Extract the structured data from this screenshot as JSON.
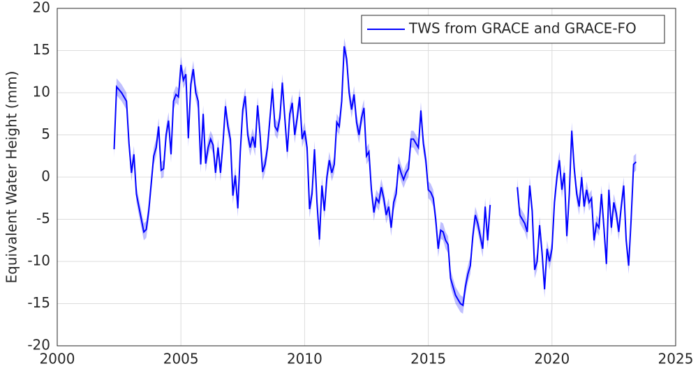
{
  "chart_data": {
    "type": "line",
    "y_label": "Equivalent Water Height (mm)",
    "xlim": [
      2000,
      2025
    ],
    "xticks": [
      2000,
      2005,
      2010,
      2015,
      2020,
      2025
    ],
    "ylim": [
      -20,
      20
    ],
    "yticks": [
      -20,
      -15,
      -10,
      -5,
      0,
      5,
      10,
      15,
      20
    ],
    "grid": true,
    "legend": "upper-right",
    "uncertainty": 1,
    "x": [
      2002.3,
      2002.4,
      2002.6,
      2002.8,
      2002.9,
      2003.0,
      2003.1,
      2003.2,
      2003.4,
      2003.5,
      2003.6,
      2003.7,
      2003.9,
      2004.0,
      2004.1,
      2004.2,
      2004.3,
      2004.4,
      2004.5,
      2004.6,
      2004.7,
      2004.8,
      2004.9,
      2005.0,
      2005.1,
      2005.2,
      2005.3,
      2005.4,
      2005.5,
      2005.6,
      2005.7,
      2005.8,
      2005.9,
      2006.0,
      2006.1,
      2006.2,
      2006.3,
      2006.4,
      2006.5,
      2006.6,
      2006.7,
      2006.8,
      2006.9,
      2007.0,
      2007.1,
      2007.2,
      2007.3,
      2007.4,
      2007.5,
      2007.6,
      2007.7,
      2007.8,
      2007.9,
      2008.0,
      2008.1,
      2008.2,
      2008.3,
      2008.4,
      2008.5,
      2008.6,
      2008.7,
      2008.8,
      2008.9,
      2009.0,
      2009.1,
      2009.2,
      2009.3,
      2009.4,
      2009.5,
      2009.6,
      2009.7,
      2009.8,
      2009.9,
      2010.0,
      2010.1,
      2010.2,
      2010.3,
      2010.4,
      2010.5,
      2010.6,
      2010.7,
      2010.8,
      2010.9,
      2011.0,
      2011.1,
      2011.2,
      2011.3,
      2011.4,
      2011.5,
      2011.6,
      2011.7,
      2011.8,
      2011.9,
      2012.0,
      2012.1,
      2012.2,
      2012.3,
      2012.4,
      2012.5,
      2012.6,
      2012.7,
      2012.8,
      2012.9,
      2013.0,
      2013.1,
      2013.2,
      2013.3,
      2013.4,
      2013.5,
      2013.6,
      2013.7,
      2013.8,
      2013.9,
      2014.0,
      2014.1,
      2014.2,
      2014.3,
      2014.4,
      2014.5,
      2014.6,
      2014.7,
      2014.8,
      2014.9,
      2015.0,
      2015.1,
      2015.2,
      2015.3,
      2015.4,
      2015.5,
      2015.6,
      2015.7,
      2015.8,
      2015.9,
      2016.0,
      2016.1,
      2016.2,
      2016.3,
      2016.4,
      2016.5,
      2016.6,
      2016.7,
      2016.8,
      2016.9,
      2017.0,
      2017.1,
      2017.2,
      2017.3,
      2017.4,
      2017.5,
      2018.0,
      2018.6,
      2018.7,
      2018.8,
      2018.9,
      2019.0,
      2019.1,
      2019.2,
      2019.3,
      2019.4,
      2019.5,
      2019.6,
      2019.7,
      2019.8,
      2019.9,
      2020.0,
      2020.1,
      2020.2,
      2020.3,
      2020.4,
      2020.5,
      2020.6,
      2020.7,
      2020.8,
      2020.9,
      2021.0,
      2021.1,
      2021.2,
      2021.3,
      2021.4,
      2021.5,
      2021.6,
      2021.7,
      2021.8,
      2021.9,
      2022.0,
      2022.1,
      2022.2,
      2022.3,
      2022.4,
      2022.5,
      2022.6,
      2022.7,
      2022.8,
      2022.9,
      2023.0,
      2023.1,
      2023.2,
      2023.3,
      2023.4
    ],
    "series": [
      {
        "name": "TWS from GRACE and GRACE-FO",
        "color": "#0000ff",
        "values": [
          3.3,
          10.7,
          10.0,
          9.0,
          4,
          0.5,
          2.7,
          -2,
          -5,
          -6.5,
          -6.2,
          -4,
          2.5,
          3.5,
          6,
          0.8,
          1,
          5,
          6.7,
          2.7,
          9,
          9.8,
          9.5,
          13.3,
          11.5,
          12.2,
          4.6,
          11,
          12.8,
          10,
          9,
          1.5,
          7.5,
          1.6,
          3.5,
          4.5,
          3.8,
          0.5,
          3.5,
          0.5,
          4,
          8.4,
          6,
          4.5,
          -2.2,
          0.2,
          -3.7,
          3,
          8,
          9.6,
          5,
          3.5,
          4.8,
          3.5,
          8.5,
          5,
          0.6,
          1.5,
          3.5,
          7,
          10.5,
          6,
          5.5,
          7,
          11.2,
          7,
          3,
          7.5,
          8.8,
          5,
          7,
          9.5,
          4.5,
          5.5,
          3.5,
          -3.8,
          -2,
          3.3,
          -3,
          -7.4,
          -1,
          -4,
          0,
          2,
          0.5,
          1.5,
          6.5,
          6,
          9,
          15.5,
          14,
          10,
          8,
          9.8,
          6.5,
          5,
          7,
          8.2,
          2.5,
          3,
          -1.5,
          -4.2,
          -2.5,
          -3,
          -1.2,
          -2.5,
          -4.5,
          -3.5,
          -6,
          -3,
          -2,
          1.5,
          0.5,
          -0.3,
          0.5,
          1,
          4.5,
          4.5,
          4,
          3.5,
          7.9,
          4,
          2,
          -1.5,
          -1.8,
          -2.5,
          -5,
          -8.5,
          -6.3,
          -6.5,
          -7.5,
          -8,
          -12,
          -13,
          -14,
          -14.5,
          -15,
          -15.2,
          -13,
          -11.5,
          -10.5,
          -7,
          -4.5,
          -5.5,
          -7,
          -8.5,
          -3.5,
          -7.5,
          -3.3,
          null,
          -1.2,
          -4.5,
          -5,
          -5.5,
          -6.5,
          -1,
          -4,
          -11,
          -10,
          -5.7,
          -9,
          -13.3,
          -8.5,
          -10,
          -8.5,
          -3,
          0,
          2,
          -1.5,
          0.5,
          -7,
          -2,
          5.5,
          1,
          -2,
          -3.5,
          0,
          -3.5,
          -1.5,
          -3,
          -2.5,
          -7.5,
          -5.5,
          -6,
          -2,
          -6,
          -10.3,
          -1.5,
          -6,
          -3,
          -4.3,
          -6.5,
          -3.5,
          -1,
          -7.5,
          -10.5,
          -5,
          1.5,
          1.8
        ]
      }
    ]
  }
}
